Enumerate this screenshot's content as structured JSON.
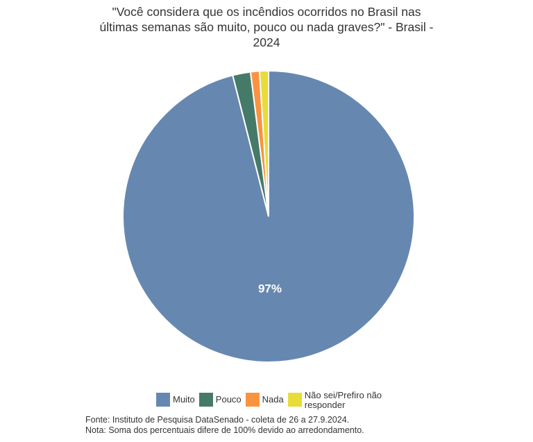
{
  "chart_data": {
    "type": "pie",
    "title_lines": [
      "\"Você considera que os incêndios ocorridos no Brasil nas",
      "últimas semanas são muito, pouco ou nada graves?\" - Brasil -",
      "2024"
    ],
    "slices": [
      {
        "name": "Muito",
        "value": 97,
        "label": "97%",
        "color": "#6688b0"
      },
      {
        "name": "Pouco",
        "value": 2,
        "label": "",
        "color": "#467a68"
      },
      {
        "name": "Nada",
        "value": 1,
        "label": "",
        "color": "#fa9340"
      },
      {
        "name": "Não sei/Prefiro não responder",
        "value": 1,
        "label": "",
        "color": "#e8dc38"
      }
    ],
    "legend_placement": "bottom",
    "legend": [
      {
        "label": "Muito",
        "color": "#6688b0"
      },
      {
        "label": "Pouco",
        "color": "#467a68"
      },
      {
        "label": "Nada",
        "color": "#fa9340"
      },
      {
        "label_lines": [
          "Não sei/Prefiro não",
          "responder"
        ],
        "color": "#e8dc38"
      }
    ]
  },
  "footnotes": {
    "source": "Fonte: Instituto de Pesquisa DataSenado - coleta de 26 a 27.9.2024.",
    "note": "Nota: Soma dos percentuais difere de 100% devido ao arredondamento."
  }
}
